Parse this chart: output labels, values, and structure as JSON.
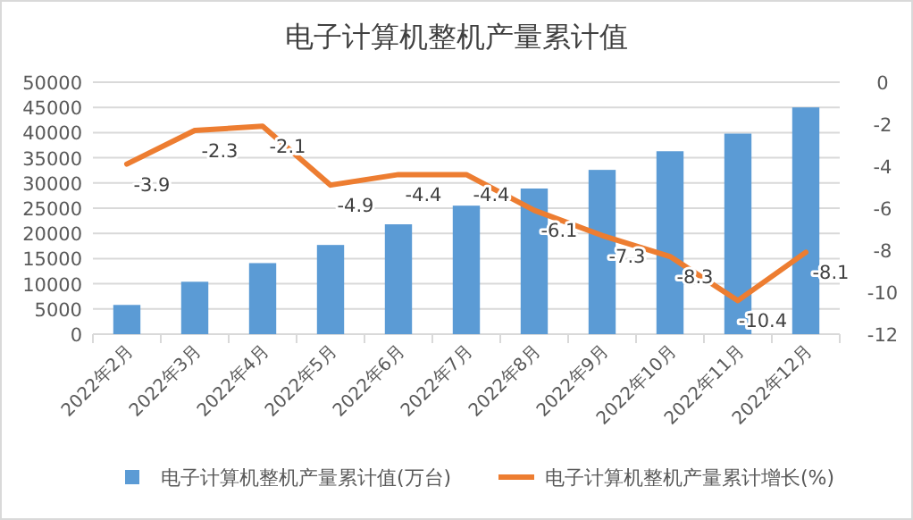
{
  "chart_data": {
    "type": "bar",
    "title": "电子计算机整机产量累计值",
    "categories": [
      "2022年2月",
      "2022年3月",
      "2022年4月",
      "2022年5月",
      "2022年6月",
      "2022年7月",
      "2022年8月",
      "2022年9月",
      "2022年10月",
      "2022年11月",
      "2022年12月"
    ],
    "series": [
      {
        "name": "电子计算机整机产量累计值(万台)",
        "color": "#5b9bd5",
        "values": [
          5800,
          10400,
          14100,
          17700,
          21800,
          25500,
          28900,
          32600,
          36300,
          39800,
          45000
        ]
      },
      {
        "name": "电子计算机整机产量累计增长(%)",
        "type": "line",
        "axis": "y2",
        "color": "#ed7d31",
        "values": [
          -3.9,
          -2.3,
          -2.1,
          -4.9,
          -4.4,
          -4.4,
          -6.1,
          -7.3,
          -8.3,
          -10.4,
          -8.1
        ],
        "value_labels": [
          "-3.9",
          "-2.3",
          "-2.1",
          "-4.9",
          "-4.4",
          "-4.4",
          "-6.1",
          "-7.3",
          "-8.3",
          "-10.4",
          "-8.1"
        ]
      }
    ],
    "ylim": [
      0,
      50000
    ],
    "yticks": [
      0,
      5000,
      10000,
      15000,
      20000,
      25000,
      30000,
      35000,
      40000,
      45000,
      50000
    ],
    "y2lim": [
      -12,
      0
    ],
    "y2ticks": [
      -12,
      -10,
      -8,
      -6,
      -4,
      -2,
      0
    ],
    "grid": "y",
    "legend": "bottom"
  }
}
